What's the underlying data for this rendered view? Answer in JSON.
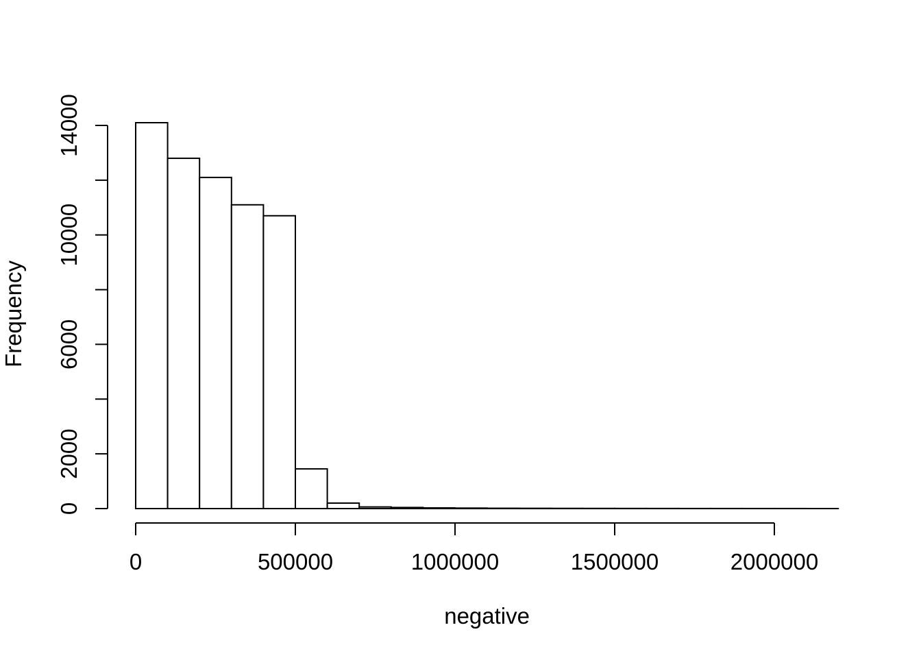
{
  "figure": {
    "aria_label": "Histogram of negative",
    "background": "#ffffff",
    "foreground": "#000000"
  },
  "chart_data": {
    "type": "bar",
    "subtype": "histogram",
    "title": "",
    "xlabel": "negative",
    "ylabel": "Frequency",
    "grid": false,
    "legend_position": "none",
    "bar_fill": "#ffffff",
    "bar_stroke": "#000000",
    "bin_start": 0,
    "bin_width": 100000,
    "counts": [
      14100,
      12800,
      12100,
      11100,
      10700,
      1450,
      200,
      60,
      40,
      25,
      18,
      12,
      10,
      8,
      6,
      5,
      4,
      3,
      3,
      2,
      2,
      1
    ],
    "xlim": [
      0,
      2200000
    ],
    "ylim": [
      0,
      14000
    ],
    "x_ticks": [
      {
        "value": 0,
        "label": "0"
      },
      {
        "value": 500000,
        "label": "500000"
      },
      {
        "value": 1000000,
        "label": "1000000"
      },
      {
        "value": 1500000,
        "label": "1500000"
      },
      {
        "value": 2000000,
        "label": "2000000"
      }
    ],
    "y_ticks": [
      {
        "value": 0,
        "label": "0"
      },
      {
        "value": 2000,
        "label": "2000"
      },
      {
        "value": 4000,
        "label": ""
      },
      {
        "value": 6000,
        "label": "6000"
      },
      {
        "value": 8000,
        "label": ""
      },
      {
        "value": 10000,
        "label": "10000"
      },
      {
        "value": 12000,
        "label": ""
      },
      {
        "value": 14000,
        "label": "14000"
      }
    ]
  }
}
